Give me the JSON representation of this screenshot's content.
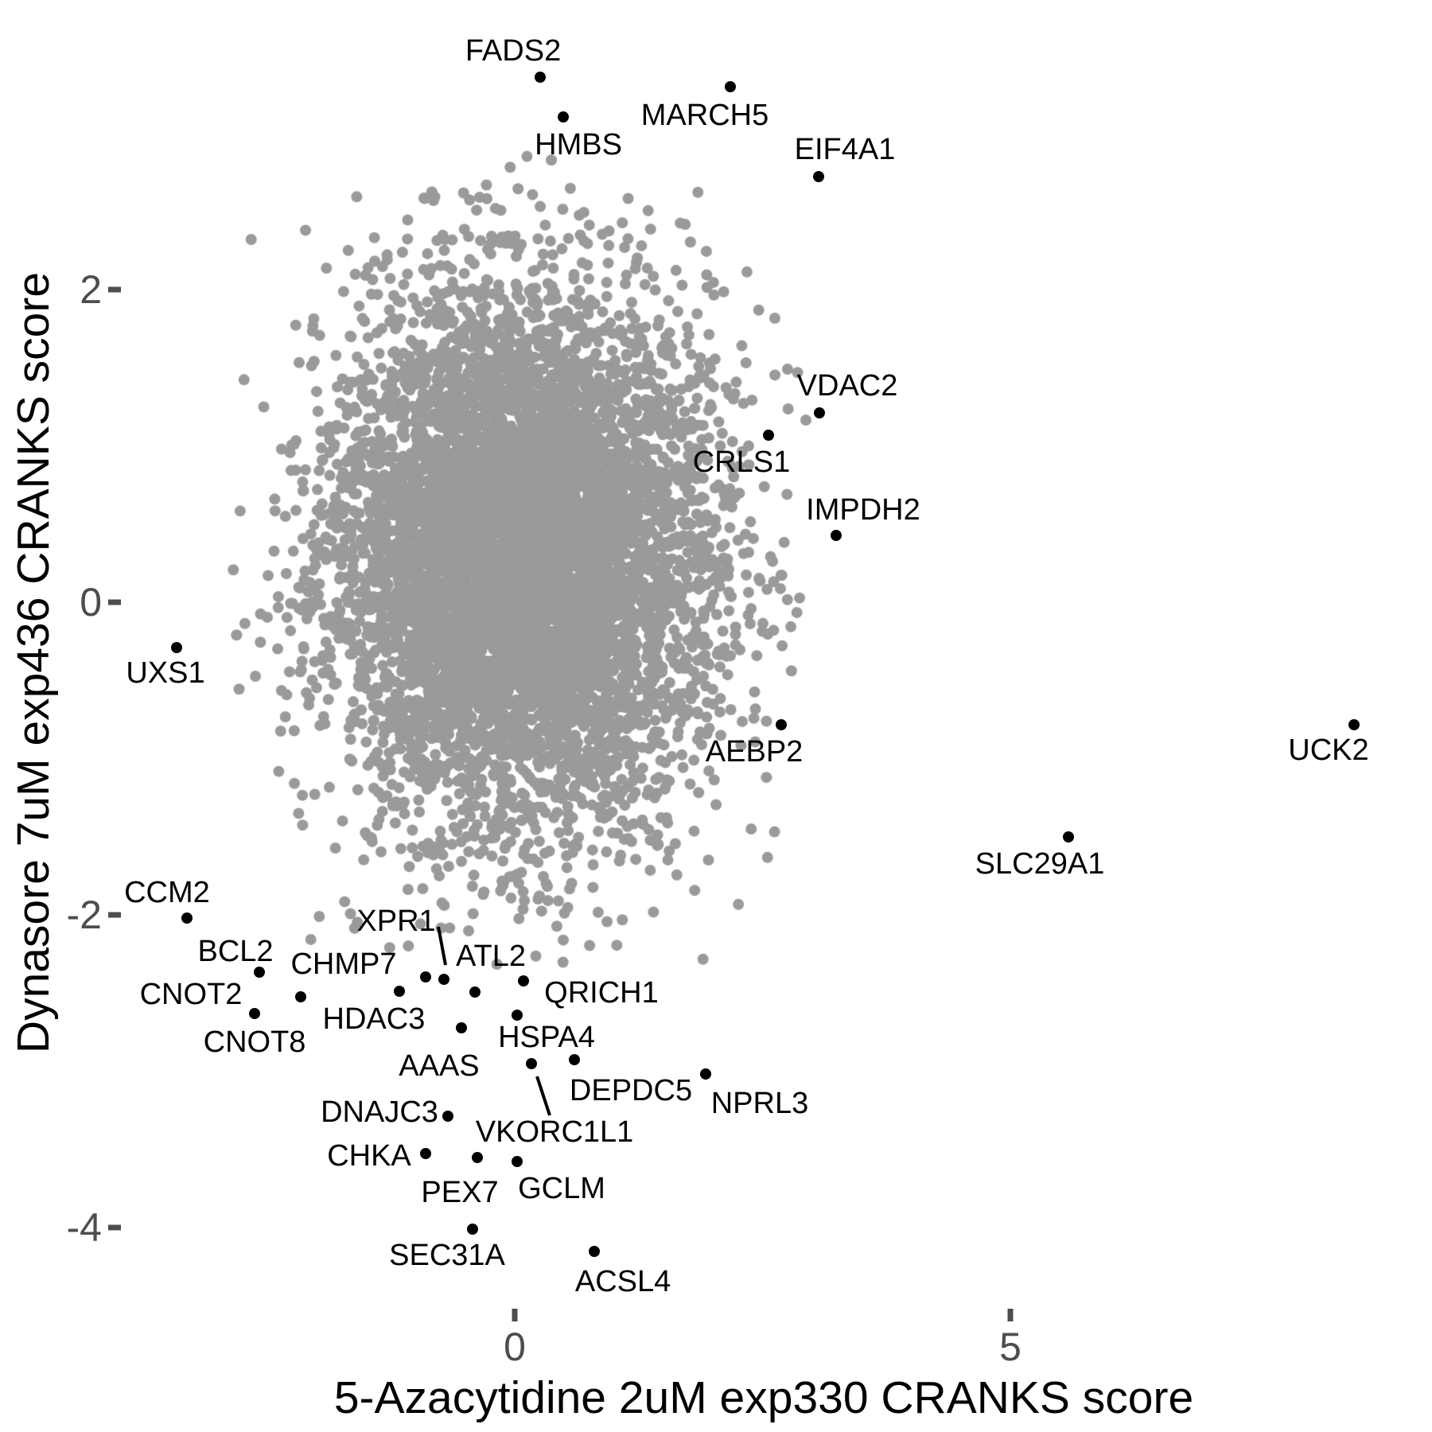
{
  "chart_data": {
    "type": "scatter",
    "title": "",
    "xlabel": "5-Azacytidine 2uM exp330 CRANKS score",
    "ylabel": "Dynasore 7uM exp436 CRANKS score",
    "x_ticks": [
      0,
      5
    ],
    "y_ticks": [
      2,
      0,
      -2,
      -4
    ],
    "xlim": [
      -3.99,
      9.25
    ],
    "ylim": [
      -4.6,
      3.75
    ],
    "grid": "off",
    "legend": "none",
    "point_color_background": "#9a9a9a",
    "point_color_labeled": "#000000",
    "tick_color": "#4d4d4d",
    "background_cloud": {
      "note": "dense cloud of unlabeled genes",
      "n": 7000,
      "center": [
        0.05,
        0.3
      ],
      "sd": [
        0.95,
        0.86
      ],
      "clip_sigma": 3.05,
      "seed": 42,
      "color": "#9a9a9a"
    },
    "labeled_genes": [
      {
        "gene": "FADS2",
        "x": 0.257,
        "y": 3.359,
        "label_offset": [
          -34,
          -33
        ]
      },
      {
        "gene": "MARCH5",
        "x": 2.175,
        "y": 3.298,
        "label_offset": [
          -32,
          36
        ]
      },
      {
        "gene": "HMBS",
        "x": 0.49,
        "y": 3.104,
        "label_offset": [
          19,
          35
        ]
      },
      {
        "gene": "EIF4A1",
        "x": 3.066,
        "y": 2.723,
        "label_offset": [
          33,
          -34
        ]
      },
      {
        "gene": "VDAC2",
        "x": 3.074,
        "y": 1.211,
        "label_offset": [
          35,
          -34
        ]
      },
      {
        "gene": "CRLS1",
        "x": 2.56,
        "y": 1.069,
        "label_offset": [
          -34,
          34
        ]
      },
      {
        "gene": "IMPDH2",
        "x": 3.242,
        "y": 0.427,
        "label_offset": [
          34,
          -32
        ]
      },
      {
        "gene": "UXS1",
        "x": -3.411,
        "y": -0.29,
        "label_offset": [
          -14,
          32
        ]
      },
      {
        "gene": "UCK2",
        "x": 8.467,
        "y": -0.784,
        "label_offset": [
          -32,
          32
        ]
      },
      {
        "gene": "AEBP2",
        "x": 2.689,
        "y": -0.784,
        "label_offset": [
          -34,
          34
        ]
      },
      {
        "gene": "SLC29A1",
        "x": 5.586,
        "y": -1.501,
        "label_offset": [
          -36,
          34
        ]
      },
      {
        "gene": "CCM2",
        "x": -3.307,
        "y": -2.02,
        "label_offset": [
          -25,
          -32
        ]
      },
      {
        "gene": "BCL2",
        "x": -2.576,
        "y": -2.366,
        "label_offset": [
          -30,
          -26
        ]
      },
      {
        "gene": "CNOT2",
        "x": -2.159,
        "y": -2.524,
        "label_offset": [
          -138,
          -3
        ]
      },
      {
        "gene": "CNOT8",
        "x": -2.624,
        "y": -2.631,
        "label_offset": [
          0,
          36
        ]
      },
      {
        "gene": "CHMP7",
        "x": -0.899,
        "y": -2.397,
        "label_offset": [
          -103,
          -16
        ]
      },
      {
        "gene": "XPR1",
        "x": -0.714,
        "y": -2.412,
        "label_offset": [
          -60,
          -73
        ],
        "leader": [
          551,
          1165,
          560,
          1213
        ]
      },
      {
        "gene": "ATL2",
        "x": -0.401,
        "y": -2.494,
        "label_offset": [
          20,
          -45
        ]
      },
      {
        "gene": "HDAC3",
        "x": -1.164,
        "y": -2.489,
        "label_offset": [
          -32,
          35
        ]
      },
      {
        "gene": "QRICH1",
        "x": 0.088,
        "y": -2.422,
        "label_offset": [
          98,
          15
        ]
      },
      {
        "gene": "HSPA4",
        "x": 0.024,
        "y": -2.641,
        "label_offset": [
          37,
          28
        ]
      },
      {
        "gene": "AAAS",
        "x": -0.538,
        "y": -2.723,
        "label_offset": [
          -28,
          48
        ]
      },
      {
        "gene": "DEPDC5",
        "x": 0.602,
        "y": -2.926,
        "label_offset": [
          71,
          39
        ]
      },
      {
        "gene": "NPRL3",
        "x": 1.926,
        "y": -3.018,
        "label_offset": [
          68,
          37
        ]
      },
      {
        "gene": "VKORC1L1",
        "x": 0.169,
        "y": -2.952,
        "label_offset": [
          29,
          86
        ],
        "leader": [
          675,
          1353,
          691,
          1402
        ]
      },
      {
        "gene": "DNAJC3",
        "x": -0.674,
        "y": -3.287,
        "label_offset": [
          -86,
          -5
        ]
      },
      {
        "gene": "CHKA",
        "x": -0.899,
        "y": -3.527,
        "label_offset": [
          -71,
          3
        ]
      },
      {
        "gene": "PEX7",
        "x": -0.377,
        "y": -3.552,
        "label_offset": [
          -22,
          44
        ]
      },
      {
        "gene": "GCLM",
        "x": 0.024,
        "y": -3.578,
        "label_offset": [
          56,
          34
        ]
      },
      {
        "gene": "SEC31A",
        "x": -0.425,
        "y": -4.01,
        "label_offset": [
          -32,
          33
        ]
      },
      {
        "gene": "ACSL4",
        "x": 0.803,
        "y": -4.153,
        "label_offset": [
          36,
          38
        ]
      }
    ]
  }
}
